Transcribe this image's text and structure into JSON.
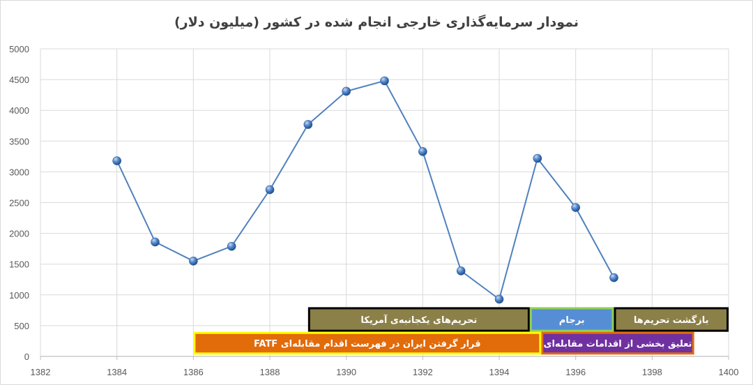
{
  "chart_data": {
    "type": "line",
    "title": "نمودار سرمایه‌گذاری خارجی انجام شده در کشور (میلیون دلار)",
    "xlabel": "",
    "ylabel": "",
    "xlim": [
      1382,
      1400
    ],
    "ylim": [
      0,
      5000
    ],
    "x_ticks": [
      1382,
      1384,
      1386,
      1388,
      1390,
      1392,
      1394,
      1396,
      1398,
      1400
    ],
    "y_ticks": [
      0,
      500,
      1000,
      1500,
      2000,
      2500,
      3000,
      3500,
      4000,
      4500,
      5000
    ],
    "grid": true,
    "series": [
      {
        "color": "#4f81bd",
        "x": [
          1384,
          1385,
          1386,
          1387,
          1388,
          1389,
          1390,
          1391,
          1392,
          1393,
          1394,
          1395,
          1396,
          1397
        ],
        "values": [
          3180,
          1860,
          1550,
          1790,
          2710,
          3770,
          4310,
          4480,
          3330,
          1390,
          930,
          3220,
          2420,
          1280
        ]
      }
    ],
    "period_annotations": [
      {
        "label": "تحریم‌های یکجانبه‌ی آمریکا",
        "start": 1389,
        "end": 1394.8,
        "level_low": 400,
        "level_high": 800,
        "fill": "#8c8049",
        "border": "#000000",
        "text_color": "#ffffff"
      },
      {
        "label": "برجام",
        "start": 1394.8,
        "end": 1397,
        "level_low": 400,
        "level_high": 800,
        "fill": "#558ed5",
        "border": "#92d050",
        "text_color": "#ffffff"
      },
      {
        "label": "بازگشت تحریم‌ها",
        "start": 1397,
        "end": 1400,
        "level_low": 400,
        "level_high": 800,
        "fill": "#8c8049",
        "border": "#000000",
        "text_color": "#ffffff"
      },
      {
        "label": "قرار گرفتن ایران در فهرست اقدام مقابله‌ای FATF",
        "start": 1386,
        "end": 1395.1,
        "level_low": 30,
        "level_high": 400,
        "fill": "#e26b0a",
        "border": "#ffff00",
        "text_color": "#ffffff"
      },
      {
        "label": "تعلیق بخشی از اقدامات مقابله‌ای",
        "start": 1395.1,
        "end": 1399.1,
        "level_low": 30,
        "level_high": 400,
        "fill": "#7030a0",
        "border": "#e26b0a",
        "text_color": "#ffffff"
      }
    ],
    "colors": {
      "grid": "#d9d9d9",
      "axis": "#bfbfbf",
      "marker": "#3a6ab0"
    }
  }
}
